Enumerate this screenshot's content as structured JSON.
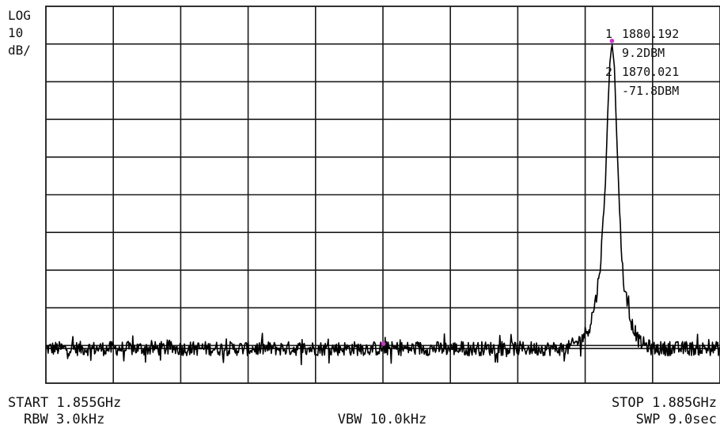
{
  "scale": {
    "line1": "LOG",
    "line2": "10",
    "line3": "dB/"
  },
  "markers": {
    "m1_label": "1",
    "m1_freq": "1880.192",
    "m1_level": "9.2DBM",
    "m2_label": "2",
    "m2_freq": "1870.021",
    "m2_level": "-71.8DBM",
    "color": "#cc33cc"
  },
  "footer": {
    "start": "START 1.855GHz",
    "stop": "STOP 1.885GHz",
    "rbw": "RBW 3.0kHz",
    "vbw": "VBW 10.0kHz",
    "swp": "SWP 9.0sec"
  },
  "chart_data": {
    "type": "line",
    "x_unit": "MHz",
    "y_unit": "dBm",
    "x_range": [
      1855,
      1885
    ],
    "y_range": [
      -81,
      19
    ],
    "y_ref": 19,
    "y_divisions": 10,
    "x_divisions": 10,
    "y_scale": "log 10 dB/div",
    "grid": true,
    "noise_floor": -71.8,
    "noise_amplitude": 1.6,
    "marker_points": [
      {
        "label": "1",
        "x": 1880.192,
        "y": 9.2
      },
      {
        "label": "2",
        "x": 1870.021,
        "y": -71.8
      }
    ],
    "series": [
      {
        "x": [
          1855,
          1878.2,
          1878.8,
          1879.2,
          1879.5,
          1879.7,
          1879.9,
          1880.0,
          1880.1,
          1880.192,
          1880.3,
          1880.4,
          1880.55,
          1880.7,
          1881.0,
          1881.4,
          1882.0,
          1885
        ],
        "values": [
          -71.8,
          -71.8,
          -69.5,
          -66,
          -58,
          -48,
          -28,
          -10,
          4,
          9.2,
          3,
          -15,
          -38,
          -54,
          -64,
          -70,
          -71.8,
          -71.8
        ]
      }
    ]
  }
}
